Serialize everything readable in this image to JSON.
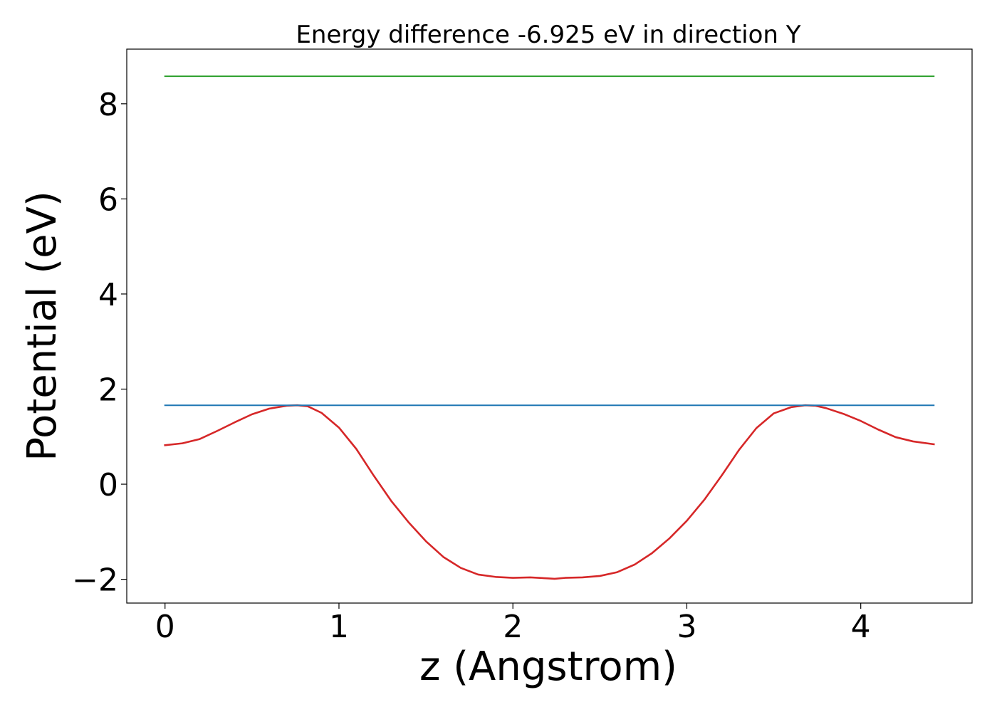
{
  "chart_data": {
    "type": "line",
    "title": "Energy difference -6.925 eV in direction Y",
    "xlabel": "z (Angstrom)",
    "ylabel": "Potential (eV)",
    "xlim": [
      -0.22,
      4.64
    ],
    "ylim": [
      -2.5,
      9.15
    ],
    "x_ticks": [
      0,
      1,
      2,
      3,
      4
    ],
    "y_ticks": [
      -2,
      0,
      2,
      4,
      6,
      8
    ],
    "x_tick_labels": [
      "0",
      "1",
      "2",
      "3",
      "4"
    ],
    "y_tick_labels": [
      "−2",
      "0",
      "2",
      "4",
      "6",
      "8"
    ],
    "grid": false,
    "legend": "none",
    "series": [
      {
        "color": "#d62728",
        "x": [
          0,
          0.1,
          0.2,
          0.3,
          0.4,
          0.5,
          0.6,
          0.7,
          0.76,
          0.82,
          0.9,
          1.0,
          1.1,
          1.2,
          1.3,
          1.4,
          1.5,
          1.6,
          1.7,
          1.8,
          1.9,
          2.0,
          2.1,
          2.2,
          2.24,
          2.3,
          2.4,
          2.5,
          2.6,
          2.7,
          2.8,
          2.9,
          3.0,
          3.1,
          3.2,
          3.3,
          3.4,
          3.5,
          3.6,
          3.68,
          3.74,
          3.8,
          3.9,
          4.0,
          4.1,
          4.2,
          4.3,
          4.42
        ],
        "y": [
          0.82,
          0.86,
          0.95,
          1.12,
          1.3,
          1.47,
          1.59,
          1.65,
          1.66,
          1.64,
          1.5,
          1.19,
          0.74,
          0.18,
          -0.35,
          -0.8,
          -1.2,
          -1.53,
          -1.76,
          -1.9,
          -1.95,
          -1.97,
          -1.96,
          -1.98,
          -1.99,
          -1.97,
          -1.96,
          -1.93,
          -1.85,
          -1.69,
          -1.45,
          -1.14,
          -0.77,
          -0.33,
          0.18,
          0.72,
          1.18,
          1.49,
          1.62,
          1.66,
          1.65,
          1.6,
          1.48,
          1.33,
          1.15,
          0.99,
          0.9,
          0.84
        ]
      },
      {
        "color": "#1f77b4",
        "x": [
          0,
          4.42
        ],
        "y": [
          1.66,
          1.66
        ]
      },
      {
        "color": "#2ca02c",
        "x": [
          0,
          4.42
        ],
        "y": [
          8.58,
          8.58
        ]
      }
    ]
  }
}
